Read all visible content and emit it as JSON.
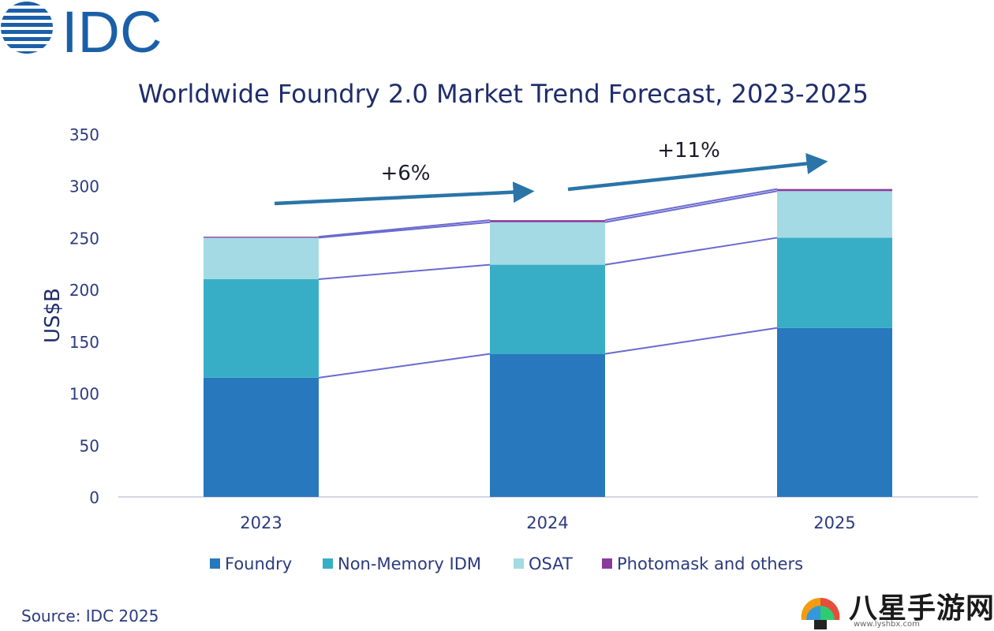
{
  "logo": {
    "text": "IDC"
  },
  "source": "Source: IDC 2025",
  "watermark": {
    "text": "八星手游网",
    "url": "www.lyshbx.com"
  },
  "colors": {
    "foundry": "#2878bd",
    "idm": "#38aec6",
    "osat": "#a3dae3",
    "photomask": "#8a3a9a",
    "text_dark": "#1f2d6b",
    "axis_text": "#2b3a80",
    "arrow": "#2a74a8",
    "connector": "#6a6ad0"
  },
  "chart_data": {
    "type": "bar",
    "stacked": true,
    "title": "Worldwide Foundry 2.0 Market Trend Forecast, 2023-2025",
    "ylabel": "US$B",
    "xlabel": "",
    "ylim": [
      0,
      350
    ],
    "yticks": [
      0,
      50,
      100,
      150,
      200,
      250,
      300,
      350
    ],
    "categories": [
      "2023",
      "2024",
      "2025"
    ],
    "series": [
      {
        "name": "Foundry",
        "values": [
          115,
          138,
          163
        ]
      },
      {
        "name": "Non-Memory IDM",
        "values": [
          95,
          86,
          87
        ]
      },
      {
        "name": "OSAT",
        "values": [
          40,
          41,
          45
        ]
      },
      {
        "name": "Photomask and others",
        "values": [
          1,
          2,
          2
        ]
      }
    ],
    "annotations": [
      {
        "text": "+6%",
        "from": "2023",
        "to": "2024"
      },
      {
        "text": "+11%",
        "from": "2024",
        "to": "2025"
      }
    ],
    "legend_position": "bottom"
  }
}
